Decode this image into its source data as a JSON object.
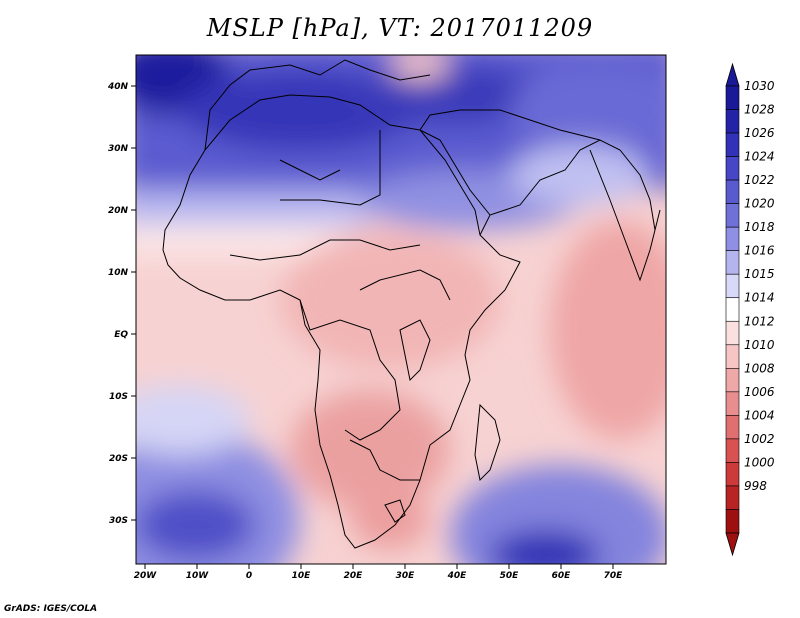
{
  "title": "MSLP [hPa], VT: 2017011209",
  "footer": "GrADS: IGES/COLA",
  "lat_labels": [
    "40N",
    "30N",
    "20N",
    "10N",
    "EQ",
    "10S",
    "20S",
    "30S"
  ],
  "lat_values": [
    40,
    30,
    20,
    10,
    0,
    -10,
    -20,
    -30
  ],
  "lon_labels": [
    "20W",
    "10W",
    "0",
    "10E",
    "20E",
    "30E",
    "40E",
    "50E",
    "60E",
    "70E"
  ],
  "lon_values": [
    -20,
    -10,
    0,
    10,
    20,
    30,
    40,
    50,
    60,
    70
  ],
  "colorbar": {
    "labels": [
      "1030",
      "1028",
      "1026",
      "1024",
      "1022",
      "1020",
      "1018",
      "1016",
      "1015",
      "1014",
      "1012",
      "1010",
      "1008",
      "1006",
      "1004",
      "1002",
      "1000",
      "998"
    ],
    "colors": [
      "#1a1a99",
      "#2323a8",
      "#3232b9",
      "#4646c6",
      "#5a5acf",
      "#7070d9",
      "#8f8fe4",
      "#b4b4ef",
      "#d8d8f8",
      "#ffffff",
      "#fbe0e0",
      "#f6c5c5",
      "#efa8a8",
      "#e88e8e",
      "#e07070",
      "#d85252",
      "#cc3a3a",
      "#b82424",
      "#9e1010"
    ]
  }
}
